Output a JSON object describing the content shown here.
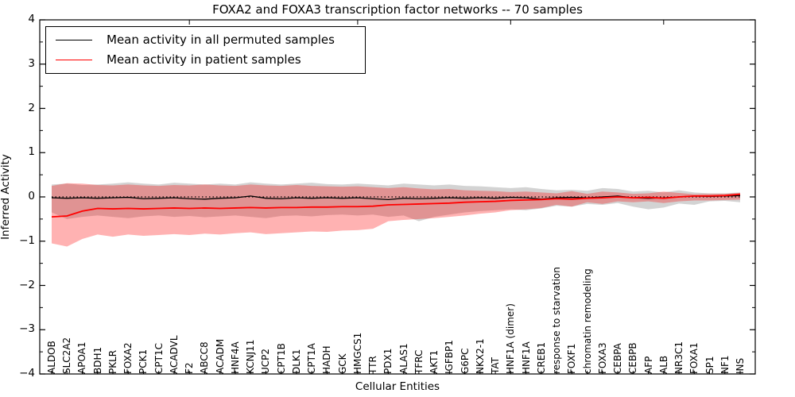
{
  "chart_data": {
    "type": "line",
    "title": "FOXA2 and FOXA3 transcription factor networks -- 70 samples",
    "xlabel": "Cellular Entities",
    "ylabel": "Inferred Activity",
    "ylim": [
      -4,
      4
    ],
    "yticks": [
      4,
      3,
      2,
      1,
      0,
      -1,
      -2,
      -3,
      -4
    ],
    "ytick_labels": [
      "4",
      "3",
      "2",
      "1",
      "0",
      "−1",
      "−2",
      "−3",
      "−4"
    ],
    "y_minor_tick_step": 0.5,
    "grid": false,
    "legend_position": "upper left",
    "zero_line": {
      "y": 0,
      "style": "dotted",
      "color": "#000000"
    },
    "top_axis_tick_indices": [
      9,
      20,
      30,
      40
    ],
    "categories": [
      "ALDOB",
      "SLC2A2",
      "APOA1",
      "BDH1",
      "PKLR",
      "FOXA2",
      "PCK1",
      "CPT1C",
      "ACADVL",
      "F2",
      "ABCC8",
      "ACADM",
      "HNF4A",
      "KCNJ11",
      "UCP2",
      "CPT1B",
      "DLK1",
      "CPT1A",
      "HADH",
      "GCK",
      "HMGCS1",
      "TTR",
      "PDX1",
      "ALAS1",
      "TFRC",
      "AKT1",
      "IGFBP1",
      "G6PC",
      "NKX2-1",
      "TAT",
      "HNF1A (dimer)",
      "HNF1A",
      "CREB1",
      "response to starvation",
      "FOXF1",
      "chromatin remodeling",
      "FOXA3",
      "CEBPA",
      "CEBPB",
      "AFP",
      "ALB",
      "NR3C1",
      "FOXA1",
      "SP1",
      "NF1",
      "INS"
    ],
    "series": [
      {
        "name": "Mean activity in all permuted samples",
        "kind": "line",
        "color": "#000000",
        "values": [
          -0.02,
          -0.03,
          -0.02,
          -0.03,
          -0.02,
          -0.01,
          -0.04,
          -0.03,
          -0.02,
          -0.04,
          -0.05,
          -0.03,
          -0.02,
          0.02,
          -0.03,
          -0.04,
          -0.02,
          -0.03,
          -0.02,
          -0.03,
          -0.02,
          -0.04,
          -0.06,
          -0.03,
          -0.04,
          -0.03,
          -0.02,
          -0.03,
          -0.02,
          -0.03,
          -0.01,
          -0.02,
          -0.05,
          -0.02,
          -0.01,
          -0.02,
          0.0,
          0.02,
          -0.02,
          -0.03,
          -0.02,
          0.0,
          0.02,
          0.01,
          0.02,
          0.03
        ]
      },
      {
        "name": "Mean activity in patient samples",
        "kind": "line",
        "color": "#ff0000",
        "values": [
          -0.45,
          -0.43,
          -0.32,
          -0.26,
          -0.27,
          -0.26,
          -0.27,
          -0.26,
          -0.25,
          -0.26,
          -0.25,
          -0.26,
          -0.25,
          -0.24,
          -0.25,
          -0.24,
          -0.24,
          -0.23,
          -0.23,
          -0.22,
          -0.22,
          -0.21,
          -0.18,
          -0.17,
          -0.16,
          -0.15,
          -0.14,
          -0.12,
          -0.11,
          -0.1,
          -0.08,
          -0.07,
          -0.06,
          -0.04,
          -0.05,
          -0.03,
          -0.02,
          0.0,
          -0.02,
          -0.01,
          -0.03,
          0.0,
          0.02,
          0.02,
          0.03,
          0.06
        ]
      },
      {
        "name": "Permuted samples band",
        "kind": "band",
        "color": "rgba(128,128,128,0.35)",
        "upper": [
          0.28,
          0.3,
          0.27,
          0.28,
          0.3,
          0.33,
          0.3,
          0.28,
          0.32,
          0.3,
          0.28,
          0.3,
          0.28,
          0.33,
          0.3,
          0.28,
          0.3,
          0.32,
          0.29,
          0.28,
          0.3,
          0.28,
          0.26,
          0.3,
          0.28,
          0.26,
          0.28,
          0.25,
          0.24,
          0.22,
          0.2,
          0.22,
          0.18,
          0.15,
          0.16,
          0.14,
          0.2,
          0.18,
          0.12,
          0.14,
          0.1,
          0.15,
          0.1,
          0.08,
          0.08,
          0.1
        ],
        "lower": [
          -0.35,
          -0.5,
          -0.45,
          -0.42,
          -0.45,
          -0.48,
          -0.44,
          -0.42,
          -0.45,
          -0.43,
          -0.46,
          -0.44,
          -0.42,
          -0.45,
          -0.48,
          -0.43,
          -0.42,
          -0.44,
          -0.41,
          -0.4,
          -0.42,
          -0.4,
          -0.45,
          -0.42,
          -0.55,
          -0.45,
          -0.4,
          -0.35,
          -0.32,
          -0.3,
          -0.28,
          -0.3,
          -0.26,
          -0.2,
          -0.22,
          -0.16,
          -0.18,
          -0.14,
          -0.22,
          -0.28,
          -0.24,
          -0.15,
          -0.18,
          -0.1,
          -0.09,
          -0.12
        ]
      },
      {
        "name": "Patient samples band",
        "kind": "band",
        "color": "rgba(255,0,0,0.3)",
        "upper": [
          0.25,
          0.31,
          0.3,
          0.27,
          0.26,
          0.28,
          0.26,
          0.25,
          0.27,
          0.26,
          0.28,
          0.26,
          0.25,
          0.28,
          0.26,
          0.25,
          0.27,
          0.25,
          0.24,
          0.23,
          0.24,
          0.22,
          0.2,
          0.22,
          0.19,
          0.17,
          0.18,
          0.15,
          0.14,
          0.13,
          0.11,
          0.12,
          0.1,
          0.08,
          0.13,
          0.07,
          0.12,
          0.1,
          0.07,
          0.08,
          0.12,
          0.09,
          0.06,
          0.07,
          0.07,
          0.09
        ],
        "lower": [
          -1.05,
          -1.12,
          -0.95,
          -0.85,
          -0.9,
          -0.85,
          -0.88,
          -0.86,
          -0.84,
          -0.86,
          -0.83,
          -0.85,
          -0.82,
          -0.8,
          -0.84,
          -0.82,
          -0.8,
          -0.78,
          -0.79,
          -0.76,
          -0.75,
          -0.72,
          -0.55,
          -0.52,
          -0.5,
          -0.48,
          -0.45,
          -0.42,
          -0.38,
          -0.35,
          -0.3,
          -0.28,
          -0.25,
          -0.18,
          -0.22,
          -0.12,
          -0.16,
          -0.1,
          -0.12,
          -0.1,
          -0.14,
          -0.1,
          -0.08,
          -0.08,
          -0.07,
          -0.06
        ]
      }
    ]
  }
}
